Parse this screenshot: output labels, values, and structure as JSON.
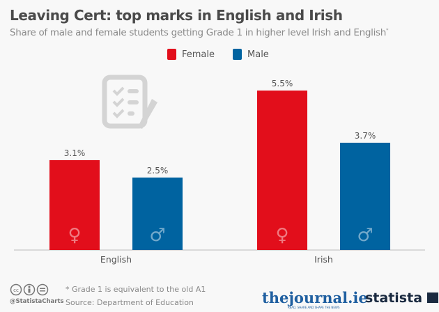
{
  "title": "Leaving Cert: top marks in English and Irish",
  "subtitle": "Share of male and female students getting Grade 1 in higher level Irish and English",
  "subtitle_mark": "*",
  "footer": {
    "note": "* Grade 1 is equivalent to the old A1",
    "source": "Source: Department of Education",
    "handle": "@StatistaCharts",
    "brand1": "thejournal.ie",
    "brand1_tag": "READ, SHARE AND SHAPE THE NEWS",
    "brand2": "statista"
  },
  "chart_data": {
    "type": "bar",
    "categories": [
      "English",
      "Irish"
    ],
    "series": [
      {
        "name": "Female",
        "color": "#e20e1b",
        "icon": "female-symbol",
        "values": [
          3.1,
          5.5
        ],
        "labels": [
          "3.1%",
          "5.5%"
        ]
      },
      {
        "name": "Male",
        "color": "#0063a0",
        "icon": "male-symbol",
        "values": [
          2.5,
          3.7
        ],
        "labels": [
          "2.5%",
          "3.7%"
        ]
      }
    ],
    "ylim": [
      0,
      5.5
    ],
    "grid": false,
    "legend": "top-center",
    "decor_icon": "checklist-clipboard-icon"
  }
}
